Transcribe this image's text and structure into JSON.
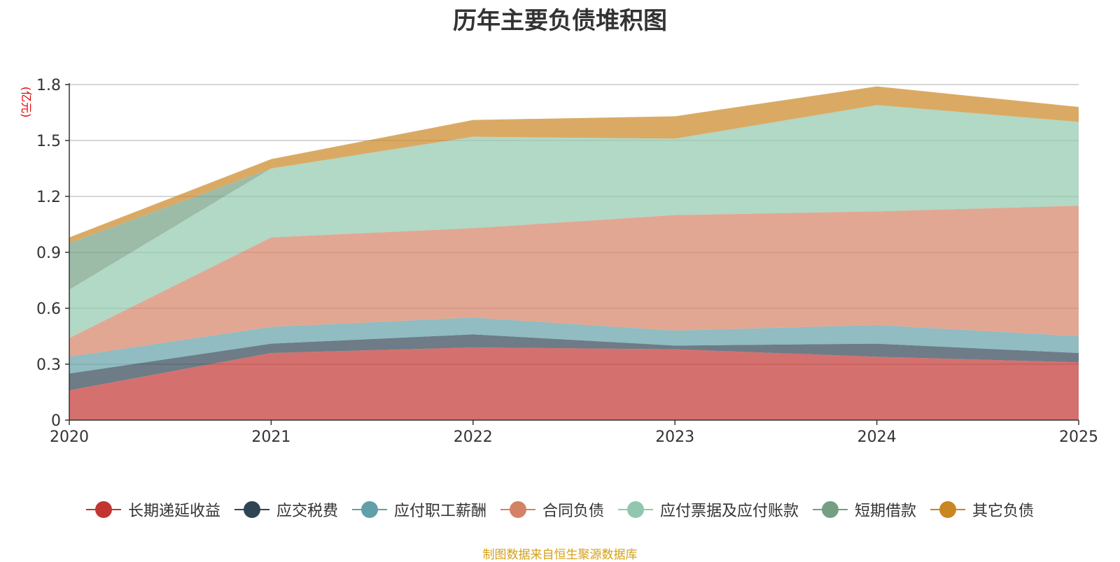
{
  "chart_data": {
    "type": "area",
    "stacked": true,
    "title": "历年主要负债堆积图",
    "ylabel": "(亿元)",
    "xlabel": "",
    "x": [
      "2020",
      "2021",
      "2022",
      "2023",
      "2024",
      "2025"
    ],
    "ylim": [
      0,
      1.8
    ],
    "yticks": [
      0,
      0.3,
      0.6,
      0.9,
      1.2,
      1.5,
      1.8
    ],
    "ytick_labels": [
      "0",
      "0.3",
      "0.6",
      "0.9",
      "1.2",
      "1.5",
      "1.8"
    ],
    "grid": true,
    "legend_position": "bottom",
    "series": [
      {
        "name": "长期递延收益",
        "color": "#c23531",
        "values": [
          0.16,
          0.36,
          0.39,
          0.38,
          0.34,
          0.31
        ]
      },
      {
        "name": "应交税费",
        "color": "#2f4554",
        "values": [
          0.09,
          0.05,
          0.07,
          0.02,
          0.07,
          0.05
        ]
      },
      {
        "name": "应付职工薪酬",
        "color": "#61a0a8",
        "values": [
          0.09,
          0.09,
          0.09,
          0.08,
          0.1,
          0.09
        ]
      },
      {
        "name": "合同负债",
        "color": "#d48265",
        "values": [
          0.1,
          0.48,
          0.48,
          0.62,
          0.61,
          0.7
        ]
      },
      {
        "name": "应付票据及应付账款",
        "color": "#91c7ae",
        "values": [
          0.26,
          0.37,
          0.49,
          0.41,
          0.57,
          0.45
        ]
      },
      {
        "name": "短期借款",
        "color": "#749f83",
        "values": [
          0.25,
          0,
          0,
          0,
          0,
          0
        ]
      },
      {
        "name": "其它负债",
        "color": "#ca8622",
        "values": [
          0.03,
          0.05,
          0.09,
          0.12,
          0.1,
          0.08
        ]
      }
    ]
  },
  "source_text": "制图数据来自恒生聚源数据库"
}
